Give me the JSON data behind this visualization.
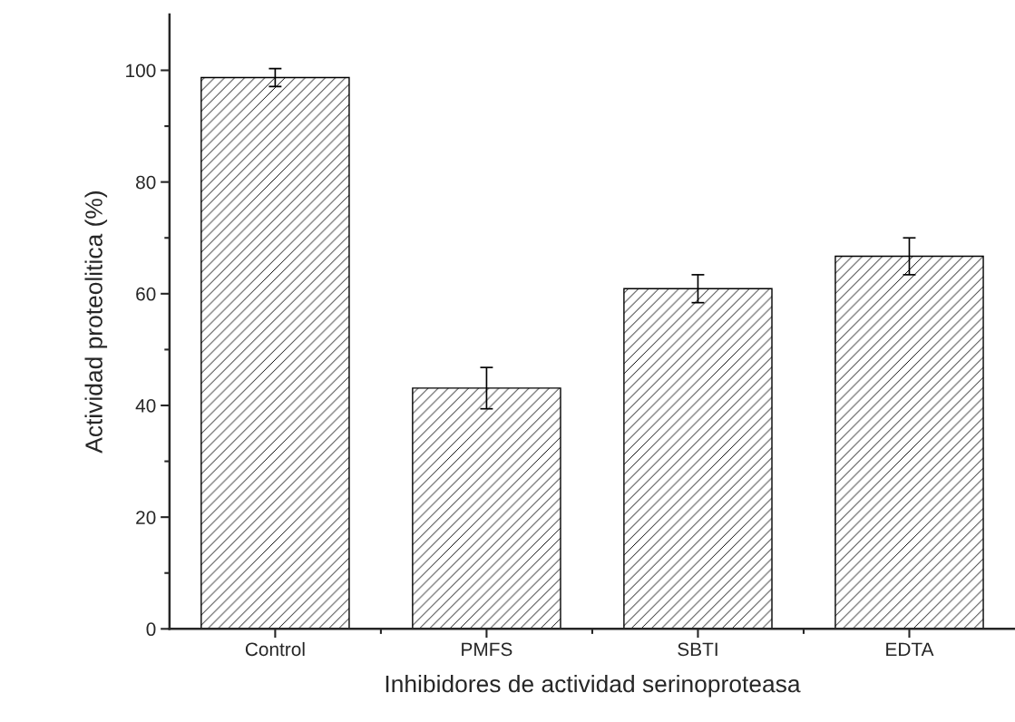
{
  "chart_data": {
    "type": "bar",
    "xlabel": "Inhibidores de actividad serinoproteasa",
    "ylabel": "Actividad proteolitica (%)",
    "categories": [
      "Control",
      "PMFS",
      "SBTI",
      "EDTA"
    ],
    "values": [
      98.7,
      43.1,
      60.9,
      66.7
    ],
    "errors": [
      1.6,
      3.7,
      2.5,
      3.3
    ],
    "color": "#000000",
    "ylim": [
      0,
      110
    ],
    "yticks": [
      0,
      20,
      40,
      60,
      80,
      100
    ],
    "grid": false
  }
}
